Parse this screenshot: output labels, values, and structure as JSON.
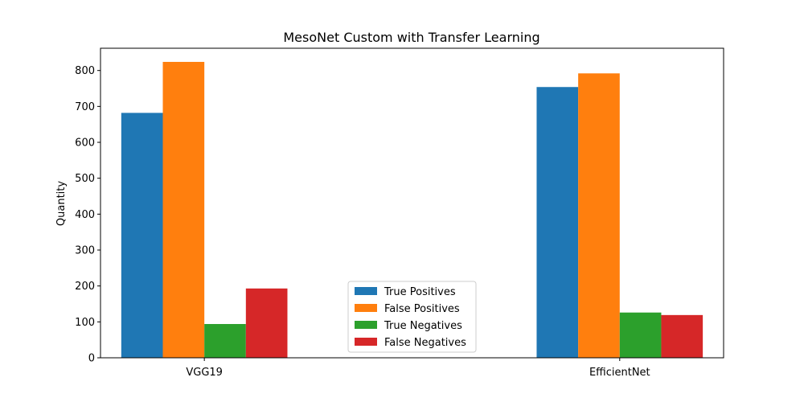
{
  "chart_data": {
    "type": "bar",
    "title": "MesoNet Custom with Transfer Learning",
    "xlabel": "",
    "ylabel": "Quantity",
    "ylim": [
      0,
      862
    ],
    "yticks": [
      0,
      100,
      200,
      300,
      400,
      500,
      600,
      700,
      800
    ],
    "categories": [
      "VGG19",
      "EfficientNet"
    ],
    "grid": false,
    "legend_position": "bottom-center",
    "series": [
      {
        "name": "True Positives",
        "color": "#1f77b4",
        "values": [
          682,
          754
        ]
      },
      {
        "name": "False Positives",
        "color": "#ff7f0e",
        "values": [
          824,
          792
        ]
      },
      {
        "name": "True Negatives",
        "color": "#2ca02c",
        "values": [
          94,
          126
        ]
      },
      {
        "name": "False Negatives",
        "color": "#d62728",
        "values": [
          193,
          119
        ]
      }
    ]
  }
}
